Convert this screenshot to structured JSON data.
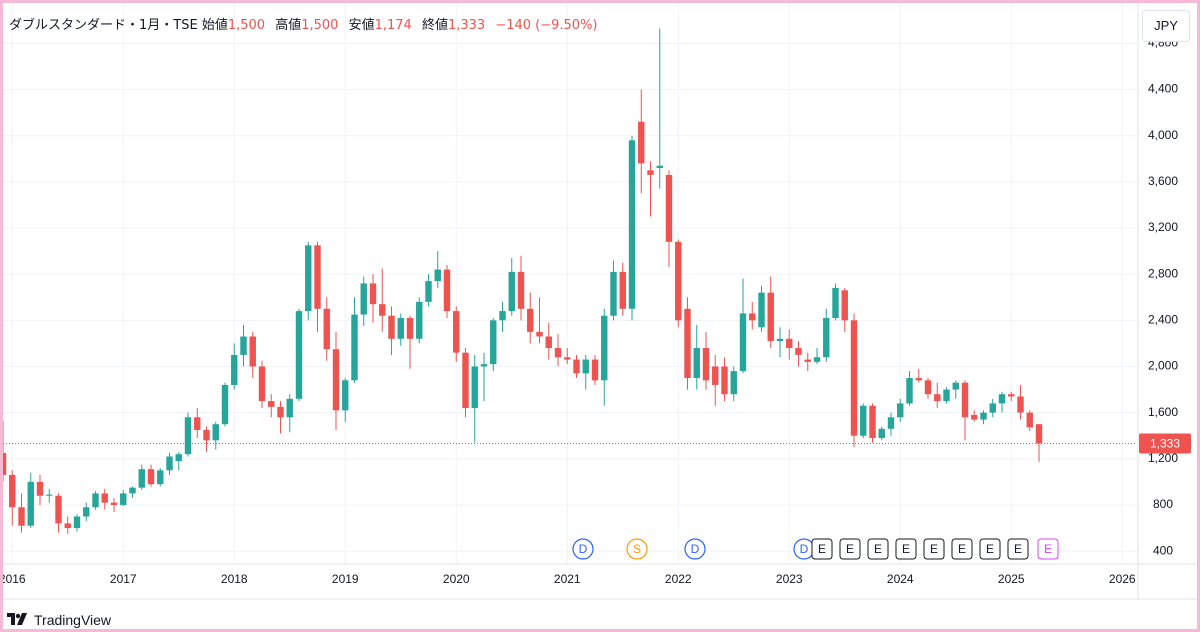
{
  "chart_data": {
    "type": "candlestick",
    "header": {
      "symbol": "ダブルスタンダード・1月・TSE",
      "open_label": "始値",
      "open": "1,500",
      "high_label": "高値",
      "high": "1,500",
      "low_label": "安値",
      "low": "1,174",
      "close_label": "終値",
      "close": "1,333",
      "change": "−140 (−9.50%)"
    },
    "currency": "JPY",
    "branding": "TradingView",
    "up_color": "#26a69a",
    "down_color": "#ef5350",
    "grid": true,
    "ylim": [
      297,
      5150
    ],
    "yticks": [
      400,
      800,
      {
        "value": 1200,
        "label": "1,200"
      },
      {
        "value": 1600,
        "label": "1,600"
      },
      {
        "value": 2000,
        "label": "2,000"
      },
      {
        "value": 2400,
        "label": "2,400"
      },
      {
        "value": 2800,
        "label": "2,800"
      },
      {
        "value": 3200,
        "label": "3,200"
      },
      {
        "value": 3600,
        "label": "3,600"
      },
      {
        "value": 4000,
        "label": "4,000"
      },
      {
        "value": 4400,
        "label": "4,400"
      },
      {
        "value": 4800,
        "label": "4,800"
      }
    ],
    "last_price": {
      "value": 1333,
      "label": "1,333"
    },
    "categories": [
      null,
      "2016",
      null,
      null,
      null,
      null,
      null,
      null,
      null,
      null,
      null,
      null,
      null,
      "2017",
      null,
      null,
      null,
      null,
      null,
      null,
      null,
      null,
      null,
      null,
      null,
      "2018",
      null,
      null,
      null,
      null,
      null,
      null,
      null,
      null,
      null,
      null,
      null,
      "2019",
      null,
      null,
      null,
      null,
      null,
      null,
      null,
      null,
      null,
      null,
      null,
      "2020",
      null,
      null,
      null,
      null,
      null,
      null,
      null,
      null,
      null,
      null,
      null,
      "2021",
      null,
      null,
      null,
      null,
      null,
      null,
      null,
      null,
      null,
      null,
      null,
      "2022",
      null,
      null,
      null,
      null,
      null,
      null,
      null,
      null,
      null,
      null,
      null,
      "2023",
      null,
      null,
      null,
      null,
      null,
      null,
      null,
      null,
      null,
      null,
      null,
      "2024",
      null,
      null,
      null,
      null,
      null,
      null,
      null,
      null,
      null,
      null,
      null,
      "2025",
      null,
      null,
      null,
      null,
      null,
      null,
      null,
      null,
      null,
      null,
      null,
      "2026"
    ],
    "open": [
      1250,
      1060,
      780,
      620,
      1000,
      880,
      880,
      640,
      600,
      700,
      780,
      900,
      820,
      800,
      900,
      950,
      1110,
      980,
      1100,
      1180,
      1240,
      1560,
      1450,
      1360,
      1500,
      1840,
      2100,
      2260,
      2000,
      1700,
      1650,
      1560,
      1720,
      2480,
      3050,
      2500,
      2150,
      1620,
      1880,
      2450,
      2720,
      2540,
      2440,
      2240,
      2420,
      2240,
      2560,
      2740,
      2840,
      2480,
      2120,
      1640,
      2000,
      2020,
      2400,
      2480,
      2820,
      2500,
      2300,
      2260,
      2160,
      2080,
      2060,
      1940,
      2060,
      1880,
      2440,
      2820,
      2500,
      4120,
      3700,
      3720,
      3660,
      3080,
      2500,
      1900,
      2160,
      2000,
      2000,
      1760,
      1960,
      2460,
      2340,
      2640,
      2220,
      2240,
      2160,
      2060,
      2040,
      2080,
      2420,
      2660,
      2400,
      1400,
      1660,
      1380,
      1460,
      1560,
      1680,
      1900,
      1880,
      1760,
      1700,
      1800,
      1860,
      1580,
      1540,
      1600,
      1680,
      1760,
      1740,
      1600,
      1500,
      null,
      null,
      null,
      null,
      null,
      null,
      null,
      null,
      null
    ],
    "high": [
      1530,
      1100,
      900,
      1080,
      1060,
      940,
      900,
      700,
      720,
      820,
      920,
      940,
      860,
      930,
      960,
      1150,
      1150,
      1120,
      1250,
      1260,
      1600,
      1640,
      1480,
      1520,
      1860,
      2200,
      2360,
      2300,
      2050,
      1760,
      1700,
      1760,
      2500,
      3080,
      3080,
      2600,
      2300,
      1900,
      2600,
      2780,
      2800,
      2850,
      2520,
      2460,
      2440,
      2600,
      2800,
      3000,
      2880,
      2520,
      2160,
      2100,
      2120,
      2420,
      2560,
      2940,
      2960,
      2640,
      2600,
      2380,
      2280,
      2160,
      2100,
      2100,
      2100,
      2500,
      2920,
      2900,
      4000,
      4400,
      3780,
      4930,
      3700,
      3100,
      2600,
      2360,
      2300,
      2100,
      2080,
      2000,
      2760,
      2560,
      2700,
      2780,
      2340,
      2320,
      2220,
      2120,
      2160,
      2500,
      2720,
      2680,
      2460,
      1680,
      1680,
      1480,
      1600,
      1720,
      1960,
      1980,
      1900,
      1860,
      1820,
      1880,
      1880,
      1620,
      1620,
      1720,
      1780,
      1780,
      1840,
      1620,
      1500,
      null,
      null,
      null,
      null,
      null,
      null,
      null,
      null,
      null
    ],
    "low": [
      1000,
      620,
      560,
      600,
      800,
      820,
      560,
      550,
      570,
      660,
      760,
      760,
      740,
      790,
      860,
      930,
      960,
      960,
      1060,
      1100,
      1220,
      1380,
      1260,
      1280,
      1480,
      1800,
      2000,
      1900,
      1640,
      1560,
      1420,
      1430,
      1700,
      2400,
      2300,
      2050,
      1450,
      1520,
      1860,
      2350,
      2380,
      2300,
      2100,
      2180,
      1980,
      2200,
      2520,
      2680,
      2420,
      2040,
      1560,
      1340,
      1700,
      1960,
      2300,
      2440,
      2400,
      2200,
      2200,
      2060,
      2000,
      2020,
      1900,
      1800,
      1840,
      1660,
      2400,
      2440,
      2400,
      3500,
      3300,
      3540,
      2860,
      2340,
      1800,
      1800,
      1800,
      1660,
      1700,
      1700,
      1940,
      2320,
      2300,
      2160,
      2080,
      2060,
      2000,
      1960,
      2020,
      2040,
      2400,
      2300,
      1300,
      1380,
      1340,
      1360,
      1400,
      1520,
      1660,
      1860,
      1720,
      1640,
      1680,
      1720,
      1360,
      1520,
      1500,
      1560,
      1600,
      1700,
      1540,
      1440,
      1174,
      null,
      null,
      null,
      null,
      null,
      null,
      null,
      null,
      null
    ],
    "close": [
      1060,
      780,
      620,
      1000,
      880,
      890,
      640,
      600,
      700,
      780,
      900,
      820,
      800,
      900,
      950,
      1110,
      980,
      1100,
      1220,
      1240,
      1560,
      1450,
      1360,
      1500,
      1840,
      2100,
      2260,
      2000,
      1700,
      1650,
      1560,
      1720,
      2480,
      3050,
      2500,
      2150,
      1620,
      1880,
      2450,
      2720,
      2540,
      2440,
      2240,
      2420,
      2240,
      2560,
      2740,
      2840,
      2480,
      2120,
      1640,
      2000,
      2020,
      2400,
      2480,
      2820,
      2500,
      2300,
      2260,
      2160,
      2080,
      2060,
      1940,
      2060,
      1880,
      2440,
      2820,
      2500,
      3960,
      3760,
      3660,
      3740,
      3080,
      2400,
      1900,
      2160,
      1880,
      1840,
      1760,
      1960,
      2460,
      2400,
      2640,
      2220,
      2240,
      2160,
      2100,
      2040,
      2080,
      2420,
      2680,
      2400,
      1400,
      1660,
      1380,
      1460,
      1560,
      1680,
      1900,
      1880,
      1760,
      1700,
      1800,
      1860,
      1560,
      1540,
      1600,
      1680,
      1760,
      1740,
      1600,
      1473,
      1333,
      null,
      null,
      null,
      null,
      null,
      null,
      null,
      null,
      null
    ],
    "events": [
      {
        "label": "D",
        "color": "#2962ff"
      },
      {
        "label": "S",
        "color": "#ff9800"
      },
      {
        "label": "D",
        "color": "#2962ff"
      },
      {
        "label": "D",
        "color": "#2962ff"
      },
      {
        "label": "E",
        "color": "#131722"
      },
      {
        "label": "E",
        "color": "#131722"
      },
      {
        "label": "E",
        "color": "#131722"
      },
      {
        "label": "E",
        "color": "#131722"
      },
      {
        "label": "E",
        "color": "#131722"
      },
      {
        "label": "E",
        "color": "#131722"
      },
      {
        "label": "E",
        "color": "#131722"
      },
      {
        "label": "E",
        "color": "#131722"
      },
      {
        "label": "E",
        "color": "#e040fb"
      }
    ]
  }
}
